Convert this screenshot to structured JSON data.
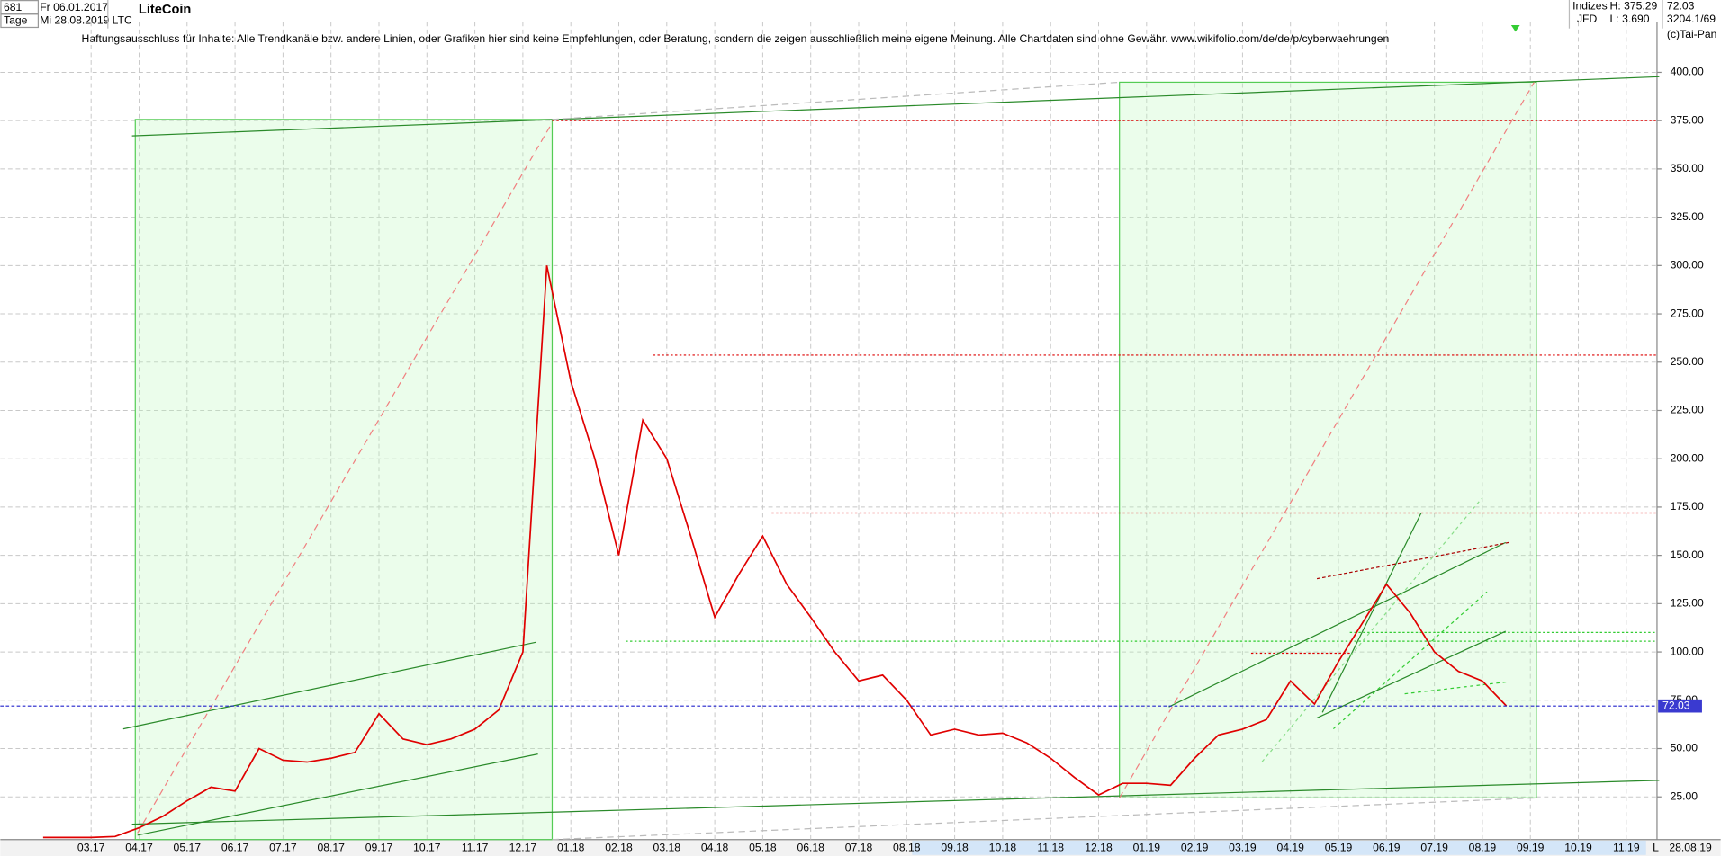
{
  "header": {
    "count": "681",
    "date_from": "Fr 06.01.2017",
    "period": "Tage",
    "date_to": "Mi 28.08.2019",
    "name": "LiteCoin",
    "symbol": "LTC",
    "group": "Indizes",
    "broker": "JFD",
    "high": "H: 375.29",
    "low": "L: 3.690",
    "last": "72.03",
    "ratio": "3204.1/69",
    "copyright": "(c)Tai-Pan",
    "disclaimer": "Haftungsausschluss für Inhalte: Alle Trendkanäle bzw. andere Linien, oder Grafiken hier sind keine Empfehlungen, oder Beratung, sondern die zeigen ausschließlich meine eigene Meinung. Alle Chartdaten sind ohne Gewähr.  www.wikifolio.com/de/de/p/cyberwaehrungen",
    "mode": "L",
    "range_end": "28.08.19"
  },
  "chart_data": {
    "type": "line",
    "color": "#e00000",
    "grid": true,
    "categories": [
      null,
      null,
      "03.17",
      null,
      "04.17",
      null,
      "05.17",
      null,
      "06.17",
      null,
      "07.17",
      null,
      "08.17",
      null,
      "09.17",
      null,
      "10.17",
      null,
      "11.17",
      null,
      "12.17",
      null,
      "01.18",
      null,
      "02.18",
      null,
      "03.18",
      null,
      "04.18",
      null,
      "05.18",
      null,
      "06.18",
      null,
      "07.18",
      null,
      "08.18",
      null,
      "09.18",
      null,
      "10.18",
      null,
      "11.18",
      null,
      "12.18",
      null,
      "01.19",
      null,
      "02.19",
      null,
      "03.19",
      null,
      "04.19",
      null,
      "05.19",
      null,
      "06.19",
      null,
      "07.19",
      null,
      "08.19",
      null,
      "09.19",
      null,
      "10.19",
      null,
      "11.19"
    ],
    "values": [
      4,
      4,
      4,
      4.5,
      9,
      15,
      23,
      30,
      28,
      50,
      44,
      43,
      45,
      48,
      68,
      55,
      52,
      55,
      60,
      70,
      100,
      300,
      240,
      200,
      150,
      220,
      200,
      160,
      118,
      140,
      160,
      135,
      118,
      100,
      85,
      88,
      75,
      57,
      60,
      57,
      58,
      53,
      45,
      35,
      26,
      32,
      32,
      31,
      45,
      57,
      60,
      65,
      85,
      73,
      95,
      115,
      135,
      120,
      100,
      90,
      85,
      72.03,
      null,
      null,
      null,
      null,
      null
    ],
    "last_value": 72.03,
    "ylim": [
      2.9,
      426.1
    ],
    "yticks": [
      {
        "value": 25,
        "label": "25.00"
      },
      {
        "value": 50,
        "label": "50.00"
      },
      {
        "value": 75,
        "label": "75.00"
      },
      {
        "value": 100,
        "label": "100.00"
      },
      {
        "value": 125,
        "label": "125.00"
      },
      {
        "value": 150,
        "label": "150.00"
      },
      {
        "value": 175,
        "label": "175.00"
      },
      {
        "value": 200,
        "label": "200.00"
      },
      {
        "value": 225,
        "label": "225.00"
      },
      {
        "value": 250,
        "label": "250.00"
      },
      {
        "value": 275,
        "label": "275.00"
      },
      {
        "value": 300,
        "label": "300.00"
      },
      {
        "value": 325,
        "label": "325.00"
      },
      {
        "value": 350,
        "label": "350.00"
      },
      {
        "value": 375,
        "label": "375.00"
      },
      {
        "value": 400,
        "label": "400.00"
      }
    ]
  }
}
